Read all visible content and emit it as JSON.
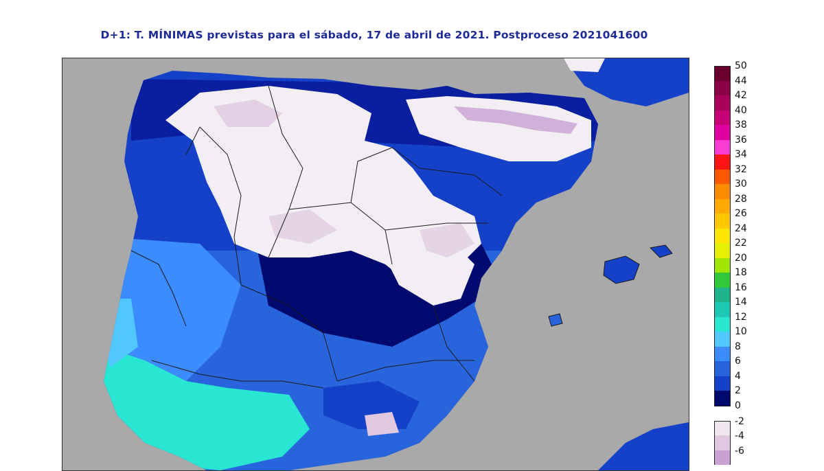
{
  "title": "D+1: T. MÍNIMAS previstas para el sábado, 17 de abril de 2021. Postproceso 2021041600",
  "map": {
    "background_color": "#a9a9a9",
    "region": "Península Ibérica y Baleares",
    "land_temperature_zones": [
      "-4 a 0 (blanco / rosa) en meseta y Pirineos",
      "0 a 4 (azul oscuro)",
      "4 a 8 (azul)",
      "10 a 14 (cian) en Andalucía occidental y costa atlántica"
    ]
  },
  "legend": {
    "positive": [
      {
        "label": "50",
        "color": "#6a0030"
      },
      {
        "label": "44",
        "color": "#8a0045"
      },
      {
        "label": "42",
        "color": "#a8005a"
      },
      {
        "label": "40",
        "color": "#c80078"
      },
      {
        "label": "38",
        "color": "#e000a0"
      },
      {
        "label": "36",
        "color": "#ff3cd0"
      },
      {
        "label": "34",
        "color": "#ff1414"
      },
      {
        "label": "32",
        "color": "#ff5a00"
      },
      {
        "label": "30",
        "color": "#ff8c00"
      },
      {
        "label": "28",
        "color": "#ffaa00"
      },
      {
        "label": "26",
        "color": "#ffc800"
      },
      {
        "label": "24",
        "color": "#ffe600"
      },
      {
        "label": "22",
        "color": "#e6f000"
      },
      {
        "label": "20",
        "color": "#a0e600"
      },
      {
        "label": "18",
        "color": "#32c83c"
      },
      {
        "label": "16",
        "color": "#1eb48c"
      },
      {
        "label": "14",
        "color": "#1ec8b4"
      },
      {
        "label": "12",
        "color": "#28e6d2"
      },
      {
        "label": "10",
        "color": "#50c8ff"
      },
      {
        "label": "8",
        "color": "#3c8cff"
      },
      {
        "label": "6",
        "color": "#2864dc"
      },
      {
        "label": "4",
        "color": "#1441c8"
      },
      {
        "label": "2",
        "color": "#0a1ea0"
      },
      {
        "label": "0",
        "color": "#000a6e"
      }
    ],
    "negative": [
      {
        "label": "-2",
        "color": "#f0e6ee"
      },
      {
        "label": "-4",
        "color": "#e0c8e0"
      },
      {
        "label": "-6",
        "color": "#c8a0d2"
      }
    ]
  }
}
